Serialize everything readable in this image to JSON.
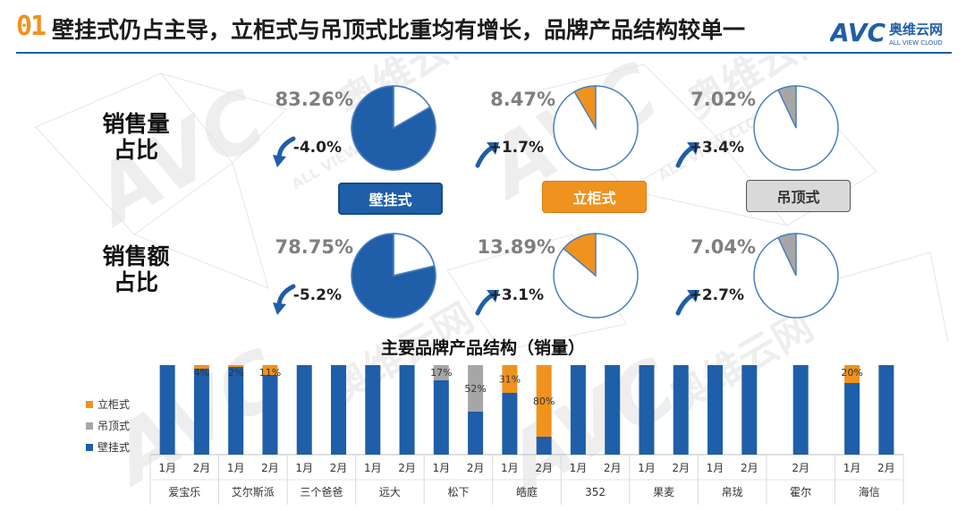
{
  "header": {
    "number": "01",
    "title": "壁挂式仍占主导，立柜式与吊顶式比重均有增长，品牌产品结构较单一",
    "logo_text": "AVC",
    "logo_cn": "奥维云网",
    "logo_en": "ALL VIEW CLOUD"
  },
  "watermark": {
    "brand": "AVC",
    "cn": "奥维云网",
    "en": "ALL VIEW CLOUD"
  },
  "rows": {
    "volume_label_line1": "销售量",
    "volume_label_line2": "占比",
    "amount_label_line1": "销售额",
    "amount_label_line2": "占比"
  },
  "categories": {
    "wall": "壁挂式",
    "stand": "立柜式",
    "ceiling": "吊顶式"
  },
  "colors": {
    "wall": "#1f5ea8",
    "stand": "#f0921e",
    "ceiling": "#a6a6a6",
    "pie_outline": "#4a7fc0",
    "accent": "#f0921e"
  },
  "chart_data": [
    {
      "type": "pie",
      "group": "销售量占比",
      "items": [
        {
          "category": "壁挂式",
          "share": 83.26,
          "share_label": "83.26%",
          "change": "-4.0%",
          "direction": "down"
        },
        {
          "category": "立柜式",
          "share": 8.47,
          "share_label": "8.47%",
          "change": "+1.7%",
          "direction": "up"
        },
        {
          "category": "吊顶式",
          "share": 7.02,
          "share_label": "7.02%",
          "change": "+3.4%",
          "direction": "up"
        }
      ]
    },
    {
      "type": "pie",
      "group": "销售额占比",
      "items": [
        {
          "category": "壁挂式",
          "share": 78.75,
          "share_label": "78.75%",
          "change": "-5.2%",
          "direction": "down"
        },
        {
          "category": "立柜式",
          "share": 13.89,
          "share_label": "13.89%",
          "change": "+3.1%",
          "direction": "up"
        },
        {
          "category": "吊顶式",
          "share": 7.04,
          "share_label": "7.04%",
          "change": "+2.7%",
          "direction": "up"
        }
      ]
    },
    {
      "type": "bar",
      "stacked": true,
      "title": "主要品牌产品结构（销量）",
      "ylim": [
        0,
        100
      ],
      "legend": [
        "立柜式",
        "吊顶式",
        "壁挂式"
      ],
      "legend_position": "left",
      "groups": [
        {
          "brand": "爱宝乐",
          "bars": [
            {
              "month": "1月",
              "wall": 100,
              "stand": 0,
              "ceiling": 0,
              "label": ""
            },
            {
              "month": "2月",
              "wall": 96,
              "stand": 4,
              "ceiling": 0,
              "label": "4%"
            }
          ]
        },
        {
          "brand": "艾尔斯派",
          "bars": [
            {
              "month": "1月",
              "wall": 98,
              "stand": 2,
              "ceiling": 0,
              "label": "2%"
            },
            {
              "month": "2月",
              "wall": 89,
              "stand": 11,
              "ceiling": 0,
              "label": "11%"
            }
          ]
        },
        {
          "brand": "三个爸爸",
          "bars": [
            {
              "month": "1月",
              "wall": 100,
              "stand": 0,
              "ceiling": 0,
              "label": ""
            },
            {
              "month": "2月",
              "wall": 100,
              "stand": 0,
              "ceiling": 0,
              "label": ""
            }
          ]
        },
        {
          "brand": "远大",
          "bars": [
            {
              "month": "1月",
              "wall": 100,
              "stand": 0,
              "ceiling": 0,
              "label": ""
            },
            {
              "month": "2月",
              "wall": 100,
              "stand": 0,
              "ceiling": 0,
              "label": ""
            }
          ]
        },
        {
          "brand": "松下",
          "bars": [
            {
              "month": "1月",
              "wall": 83,
              "stand": 0,
              "ceiling": 17,
              "label": "17%"
            },
            {
              "month": "2月",
              "wall": 48,
              "stand": 0,
              "ceiling": 52,
              "label": "52%"
            }
          ]
        },
        {
          "brand": "皓庭",
          "bars": [
            {
              "month": "1月",
              "wall": 69,
              "stand": 31,
              "ceiling": 0,
              "label": "31%"
            },
            {
              "month": "2月",
              "wall": 20,
              "stand": 80,
              "ceiling": 0,
              "label": "80%"
            }
          ]
        },
        {
          "brand": "352",
          "bars": [
            {
              "month": "1月",
              "wall": 100,
              "stand": 0,
              "ceiling": 0,
              "label": ""
            },
            {
              "month": "2月",
              "wall": 100,
              "stand": 0,
              "ceiling": 0,
              "label": ""
            }
          ]
        },
        {
          "brand": "果麦",
          "bars": [
            {
              "month": "1月",
              "wall": 100,
              "stand": 0,
              "ceiling": 0,
              "label": ""
            },
            {
              "month": "2月",
              "wall": 100,
              "stand": 0,
              "ceiling": 0,
              "label": ""
            }
          ]
        },
        {
          "brand": "帛珑",
          "bars": [
            {
              "month": "1月",
              "wall": 100,
              "stand": 0,
              "ceiling": 0,
              "label": ""
            },
            {
              "month": "2月",
              "wall": 100,
              "stand": 0,
              "ceiling": 0,
              "label": ""
            }
          ]
        },
        {
          "brand": "霍尔",
          "bars": [
            {
              "month": "2月",
              "wall": 100,
              "stand": 0,
              "ceiling": 0,
              "label": ""
            }
          ]
        },
        {
          "brand": "海信",
          "bars": [
            {
              "month": "1月",
              "wall": 80,
              "stand": 20,
              "ceiling": 0,
              "label": "20%"
            },
            {
              "month": "2月",
              "wall": 100,
              "stand": 0,
              "ceiling": 0,
              "label": ""
            }
          ]
        }
      ]
    }
  ]
}
